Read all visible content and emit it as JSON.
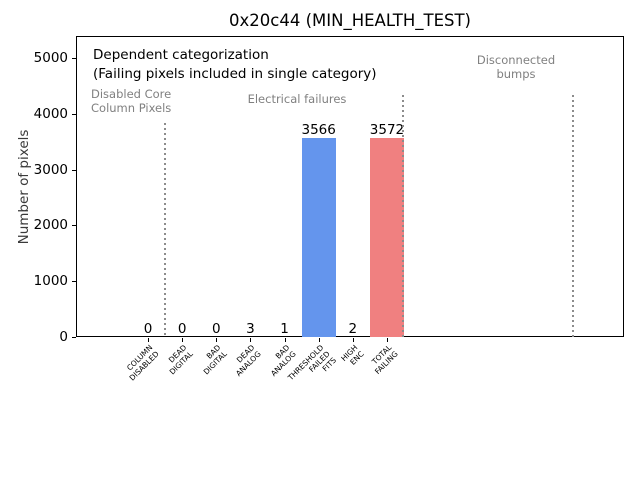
{
  "chart_data": {
    "type": "bar",
    "title": "0x20c44 (MIN_HEALTH_TEST)",
    "xlabel": "",
    "ylabel": "Number of pixels",
    "ylim": [
      0,
      5390
    ],
    "yticks": [
      0,
      1000,
      2000,
      3000,
      4000,
      5000
    ],
    "grid": false,
    "legend": "none",
    "categories": [
      "COLUMN\nDISABLED",
      "DEAD\nDIGITAL",
      "BAD\nDIGITAL",
      "DEAD\nANALOG",
      "BAD\nANALOG",
      "THRESHOLD\nFAILED\nFITS",
      "HIGH\nENC",
      "TOTAL\nFAILING"
    ],
    "values": [
      0,
      0,
      0,
      3,
      1,
      3566,
      2,
      3572
    ],
    "value_labels": [
      "0",
      "0",
      "0",
      "3",
      "1",
      "3566",
      "2",
      "3572"
    ],
    "bar_colors": [
      "#6495ED",
      "#6495ED",
      "#6495ED",
      "#6495ED",
      "#6495ED",
      "#6495ED",
      "#6495ED",
      "#F08080"
    ],
    "colors": {
      "threshold_failed_bar": "#6495ED",
      "total_failing_bar": "#F08080",
      "annotation_gray": "#808080",
      "separator_gray": "#8c8c8c",
      "axis_black": "#000000"
    },
    "annotations": [
      {
        "text": "Dependent categorization",
        "x": 93,
        "y": 48,
        "color": "#000000",
        "size": 13.5,
        "align": "left"
      },
      {
        "text": "(Failing pixels included in single category)",
        "x": 93,
        "y": 67,
        "color": "#000000",
        "size": 13.5,
        "align": "left"
      },
      {
        "text": "Disabled Core\nColumn Pixels",
        "x": 91,
        "y": 88,
        "color": "#808080",
        "size": 11.5,
        "align": "left"
      },
      {
        "text": "Electrical failures",
        "x": 297,
        "y": 93,
        "color": "#808080",
        "size": 11.5,
        "align": "center"
      },
      {
        "text": "Disconnected\nbumps",
        "x": 516,
        "y": 54,
        "color": "#808080",
        "size": 11.5,
        "align": "center"
      }
    ],
    "separators": [
      {
        "x": 165,
        "y_top": 123
      },
      {
        "x": 403,
        "y_top": 95
      },
      {
        "x": 573,
        "y_top": 95
      }
    ]
  }
}
